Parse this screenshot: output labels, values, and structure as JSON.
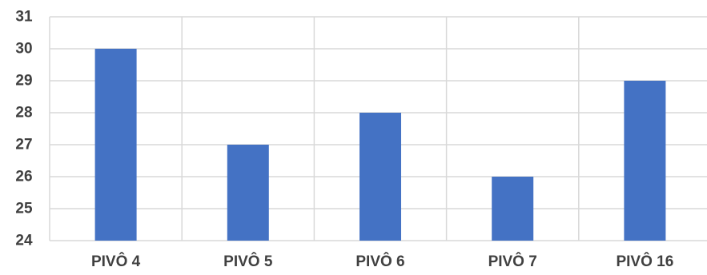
{
  "chart_data": {
    "type": "bar",
    "categories": [
      "PIVÔ 4",
      "PIVÔ 5",
      "PIVÔ 6",
      "PIVÔ 7",
      "PIVÔ 16"
    ],
    "values": [
      30,
      27,
      28,
      26,
      29
    ],
    "title": "",
    "xlabel": "",
    "ylabel": "",
    "ylim": [
      24,
      31
    ],
    "yticks": [
      24,
      25,
      26,
      27,
      28,
      29,
      30,
      31
    ],
    "grid": true,
    "legend": "none",
    "bar_color": "#4472C4",
    "grid_color": "#D9D9D9"
  }
}
